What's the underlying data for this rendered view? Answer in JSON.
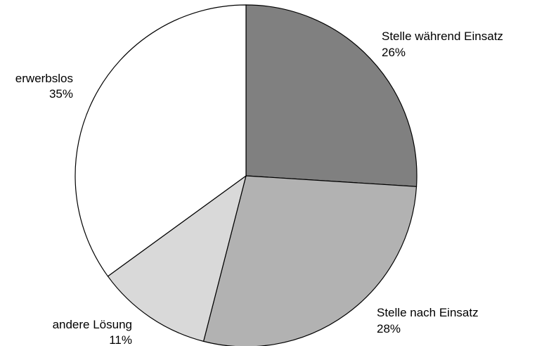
{
  "chart_data": {
    "type": "pie",
    "start_angle_deg": 0,
    "direction": "clockwise",
    "slices": [
      {
        "label": "Stelle während Einsatz",
        "value": 26,
        "value_label": "26%",
        "color": "#808080"
      },
      {
        "label": "Stelle nach Einsatz",
        "value": 28,
        "value_label": "28%",
        "color": "#b2b2b2"
      },
      {
        "label": "andere Lösung",
        "value": 11,
        "value_label": "11%",
        "color": "#d9d9d9"
      },
      {
        "label": "erwerbslos",
        "value": 35,
        "value_label": "35%",
        "color": "#ffffff"
      }
    ]
  }
}
